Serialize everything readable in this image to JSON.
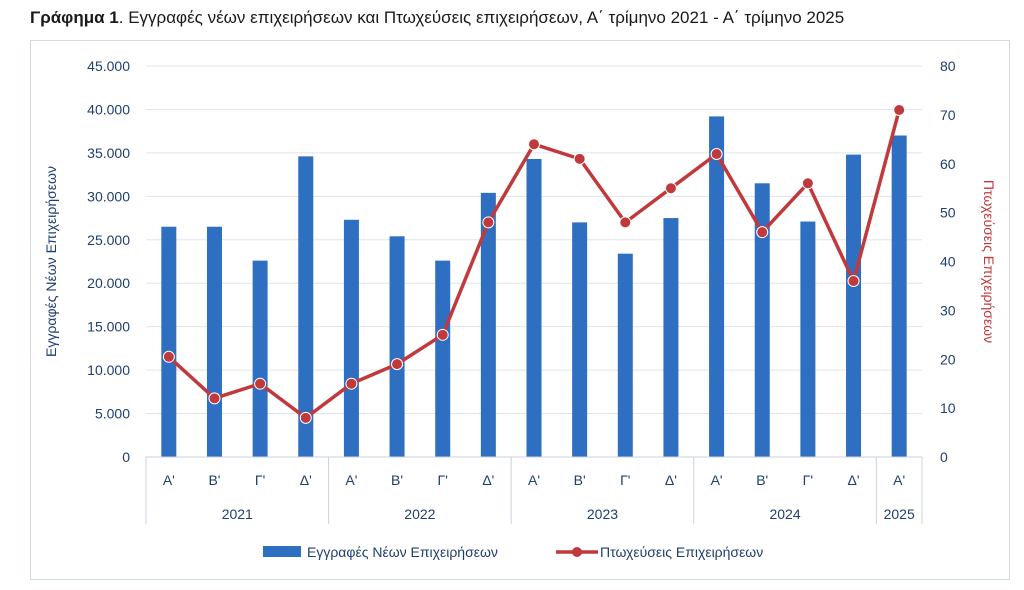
{
  "title_prefix": "Γράφημα 1",
  "title_rest": ". Εγγραφές νέων επιχειρήσεων και Πτωχεύσεις επιχειρήσεων, Α΄ τρίμηνο 2021 - Α΄ τρίμηνο 2025",
  "colors": {
    "bars": "#2e6fc1",
    "line": "#c0393b",
    "axis_left": "#1f3f6e",
    "axis_right": "#c0393b",
    "grid": "#dfe5ee"
  },
  "chart_data": {
    "type": "bar",
    "categories": [
      "Α'",
      "Β'",
      "Γ'",
      "Δ'",
      "Α'",
      "Β'",
      "Γ'",
      "Δ'",
      "Α'",
      "Β'",
      "Γ'",
      "Δ'",
      "Α'",
      "Β'",
      "Γ'",
      "Δ'",
      "Α'"
    ],
    "years": [
      {
        "label": "2021",
        "count": 4
      },
      {
        "label": "2022",
        "count": 4
      },
      {
        "label": "2023",
        "count": 4
      },
      {
        "label": "2024",
        "count": 4
      },
      {
        "label": "2025",
        "count": 1
      }
    ],
    "series": [
      {
        "name": "Εγγραφές Νέων Επιχειρήσεων",
        "type": "bar",
        "axis": "left",
        "values": [
          26500,
          26500,
          22600,
          34600,
          27300,
          25400,
          22600,
          30400,
          34300,
          27000,
          23400,
          27500,
          39200,
          31500,
          27100,
          34800,
          37000
        ]
      },
      {
        "name": "Πτωχεύσεις Επιχειρήσεων",
        "type": "line",
        "axis": "right",
        "values": [
          20.5,
          12,
          15,
          8,
          15,
          19,
          25,
          48,
          64,
          61,
          48,
          55,
          62,
          46,
          56,
          36,
          71
        ]
      }
    ],
    "ylabel": "Εγγραφές Νέων Επιχειρήσεων",
    "y2label": "Πτωχεύσεις Επιχειρήσεων",
    "ylim": [
      0,
      45000
    ],
    "yticks": [
      "0",
      "5.000",
      "10.000",
      "15.000",
      "20.000",
      "25.000",
      "30.000",
      "35.000",
      "40.000",
      "45.000"
    ],
    "y2lim": [
      0,
      80
    ],
    "y2ticks": [
      "0",
      "10",
      "20",
      "30",
      "40",
      "50",
      "60",
      "70",
      "80"
    ],
    "grid": true,
    "legend": "bottom"
  }
}
